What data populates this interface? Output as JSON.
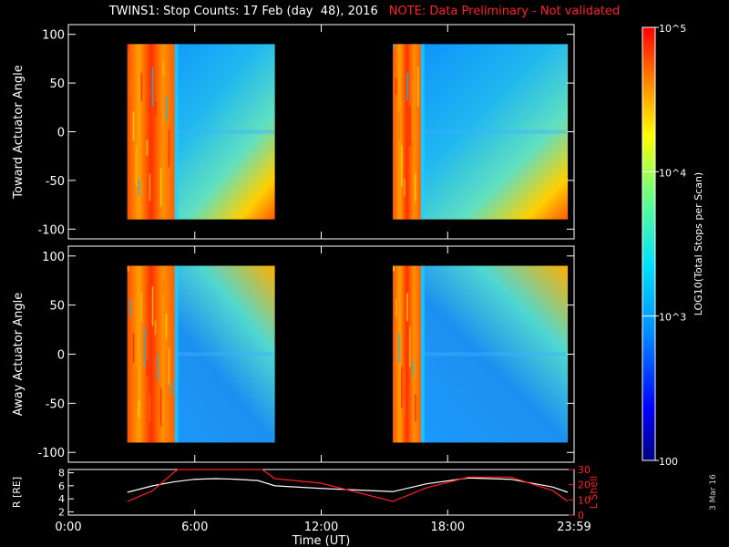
{
  "header": {
    "title": "TWINS1: Stop Counts: 17 Feb (day  48), 2016",
    "note": "NOTE: Data Preliminary - Not validated"
  },
  "date_stamp": "3 Mar 16",
  "colors": {
    "note": "#ff2020",
    "ephem_R": "#ffffff",
    "ephem_L": "#ff2020"
  },
  "chart_data": [
    {
      "type": "heatmap",
      "ylabel": "Toward Actuator Angle",
      "ylim": [
        -110,
        110
      ],
      "yticks": [
        -100,
        -50,
        0,
        50,
        100
      ],
      "xlim": [
        0,
        24
      ],
      "x_tick_labels": [
        "0:00",
        "6:00",
        "12:00",
        "18:00",
        "23:59"
      ],
      "x_tick_values": [
        0,
        6,
        12,
        18,
        24
      ],
      "data_ranges_ut": [
        [
          2.8,
          9.8
        ],
        [
          15.4,
          23.7
        ]
      ],
      "angle_range": [
        -90,
        90
      ],
      "log_scale": true
    },
    {
      "type": "heatmap",
      "ylabel": "Away Actuator Angle",
      "ylim": [
        -110,
        110
      ],
      "yticks": [
        -100,
        -50,
        0,
        50,
        100
      ],
      "xlim": [
        0,
        24
      ],
      "data_ranges_ut": [
        [
          2.8,
          9.8
        ],
        [
          15.4,
          23.7
        ]
      ],
      "angle_range": [
        -90,
        90
      ],
      "log_scale": true
    },
    {
      "type": "colorbar",
      "label": "LOG10(Total Stops per Scan)",
      "range": [
        100,
        100000
      ],
      "tick_labels": [
        "100",
        "10^3",
        "10^4",
        "10^5"
      ],
      "log_scale": true
    },
    {
      "type": "line",
      "xlabel": "Time (UT)",
      "left_axis": {
        "label": "R [RE]",
        "ylim": [
          1.5,
          8.5
        ],
        "ticks": [
          2,
          4,
          6,
          8
        ]
      },
      "right_axis": {
        "label": "L Shell",
        "ylim": [
          0,
          30
        ],
        "ticks": [
          0,
          10,
          20,
          30
        ]
      },
      "series": [
        {
          "name": "R [RE]",
          "axis": "left",
          "x": [
            2.8,
            4,
            5,
            6,
            7,
            8,
            9,
            9.8,
            12,
            15.4,
            17,
            19,
            21,
            23,
            23.7
          ],
          "y": [
            5.0,
            6.0,
            6.6,
            7.0,
            7.1,
            7.0,
            6.8,
            6.0,
            5.6,
            5.1,
            6.3,
            7.2,
            7.0,
            5.8,
            5.0
          ]
        },
        {
          "name": "L Shell",
          "axis": "right",
          "x": [
            2.8,
            4,
            5,
            5.2,
            9.2,
            9.8,
            12,
            15.4,
            17,
            19,
            21,
            23,
            23.7
          ],
          "y": [
            9,
            16,
            28,
            30,
            30,
            24,
            21,
            9,
            18,
            25,
            25,
            16,
            9
          ]
        }
      ]
    }
  ]
}
